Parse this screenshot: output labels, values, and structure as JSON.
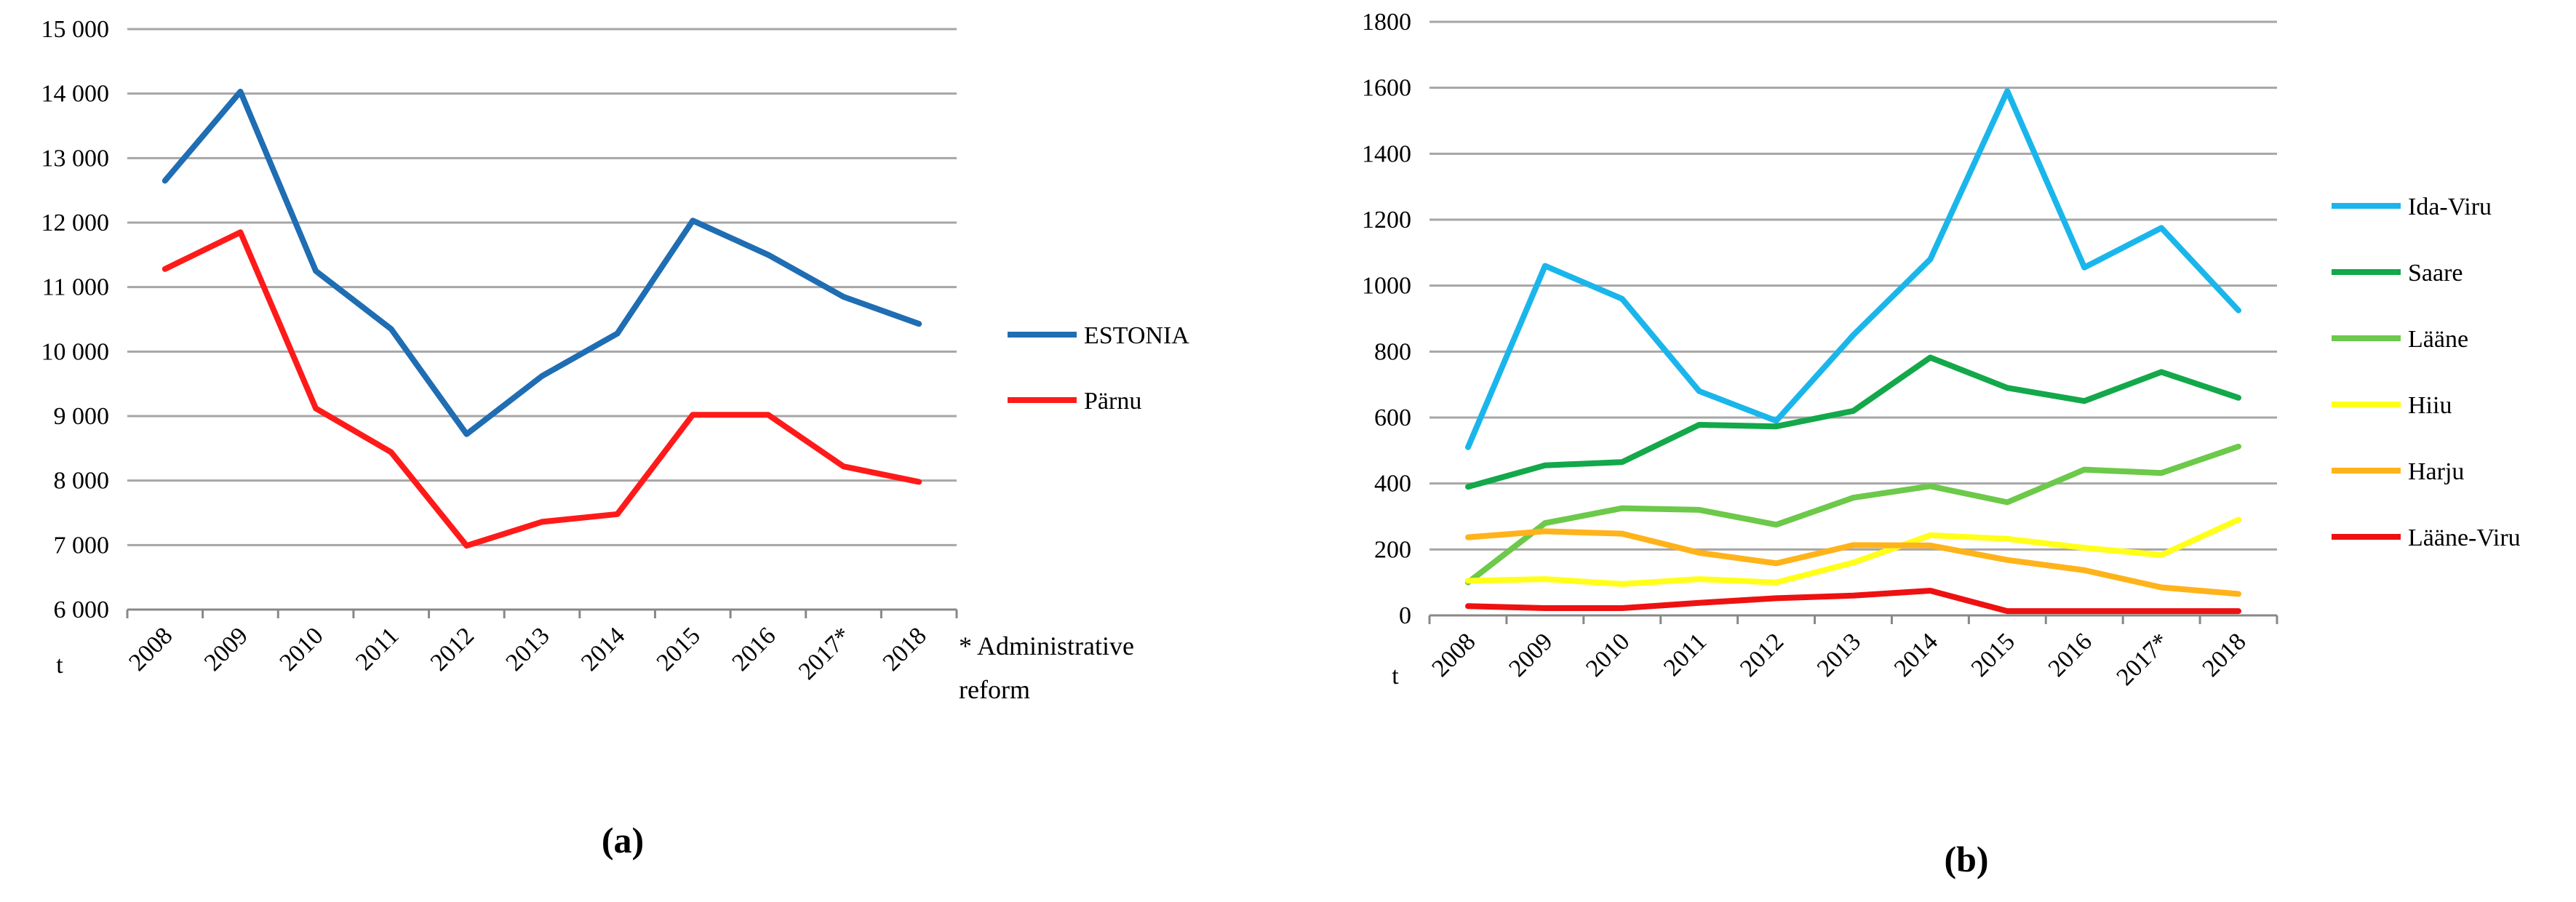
{
  "chart_data": [
    {
      "type": "line",
      "panel_label": "(a)",
      "ylabel": "t",
      "note": [
        "* Administrative",
        "reform"
      ],
      "categories": [
        "2008",
        "2009",
        "2010",
        "2011",
        "2012",
        "2013",
        "2014",
        "2015",
        "2016",
        "2017*",
        "2018"
      ],
      "ylim": [
        6000,
        15000
      ],
      "yticks": [
        6000,
        7000,
        8000,
        9000,
        10000,
        11000,
        12000,
        13000,
        14000,
        15000
      ],
      "ytick_labels": [
        "6 000",
        "7 000",
        "8 000",
        "9 000",
        "10 000",
        "11 000",
        "12 000",
        "13 000",
        "14 000",
        "15 000"
      ],
      "grid": true,
      "legend_position": "right",
      "series": [
        {
          "name": "ESTONIA",
          "color": "#1f6db3",
          "values": [
            12650,
            14030,
            11250,
            10350,
            8720,
            9620,
            10280,
            12030,
            11500,
            10850,
            10430
          ]
        },
        {
          "name": "Pärnu",
          "color": "#ff1a1a",
          "values": [
            11280,
            11850,
            9120,
            8440,
            6990,
            7360,
            7480,
            9020,
            9020,
            8220,
            7980
          ]
        }
      ]
    },
    {
      "type": "line",
      "panel_label": "(b)",
      "ylabel": "t",
      "categories": [
        "2008",
        "2009",
        "2010",
        "2011",
        "2012",
        "2013",
        "2014",
        "2015",
        "2016",
        "2017*",
        "2018"
      ],
      "ylim": [
        0,
        1800
      ],
      "yticks": [
        0,
        200,
        400,
        600,
        800,
        1000,
        1200,
        1400,
        1600,
        1800
      ],
      "ytick_labels": [
        "0",
        "200",
        "400",
        "600",
        "800",
        "1000",
        "1200",
        "1400",
        "1600",
        "1800"
      ],
      "grid": true,
      "legend_position": "right",
      "series": [
        {
          "name": "Ida-Viru",
          "color": "#1ab6eb",
          "values": [
            510,
            1060,
            960,
            680,
            590,
            850,
            1080,
            1590,
            1055,
            1175,
            925
          ]
        },
        {
          "name": "Saare",
          "color": "#13a84a",
          "values": [
            390,
            455,
            465,
            578,
            573,
            620,
            782,
            690,
            650,
            738,
            660
          ]
        },
        {
          "name": "Lääne",
          "color": "#6cc94a",
          "values": [
            100,
            280,
            325,
            320,
            275,
            357,
            392,
            343,
            442,
            432,
            512
          ]
        },
        {
          "name": "Hiiu",
          "color": "#ffff1a",
          "values": [
            105,
            110,
            95,
            110,
            100,
            160,
            243,
            232,
            205,
            183,
            290
          ]
        },
        {
          "name": "Harju",
          "color": "#ffb31a",
          "values": [
            237,
            255,
            248,
            190,
            158,
            213,
            212,
            168,
            137,
            85,
            65
          ]
        },
        {
          "name": "Lääne-Viru",
          "color": "#ee1111",
          "values": [
            28,
            22,
            22,
            38,
            52,
            60,
            75,
            13,
            13,
            13,
            13
          ]
        }
      ]
    }
  ]
}
